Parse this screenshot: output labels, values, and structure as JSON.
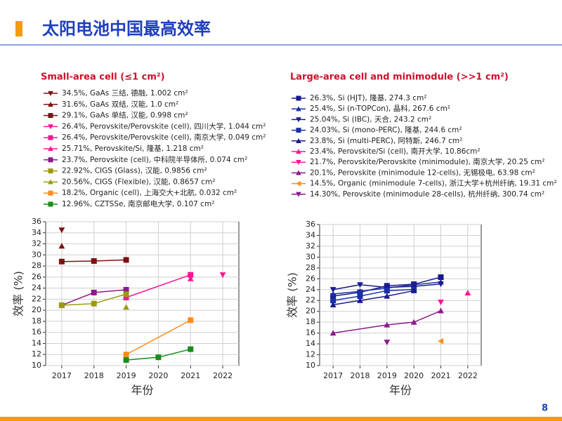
{
  "slide_title": "太阳电池中国最高效率",
  "page_number": "8",
  "chart_data": [
    {
      "type": "line",
      "title": "Small-area cell (≤1 cm²)",
      "xlabel": "年份",
      "ylabel": "效率 (%)",
      "xlim": [
        2016.5,
        2022.5
      ],
      "xticks": [
        2017,
        2018,
        2019,
        2020,
        2021,
        2022
      ],
      "ylim": [
        10,
        36
      ],
      "yticks": [
        10,
        12,
        14,
        16,
        18,
        20,
        22,
        24,
        26,
        28,
        30,
        32,
        34,
        36
      ],
      "grid": true,
      "series": [
        {
          "name": "34.5%, GaAs 三结, 德融, 1.002 cm²",
          "color": "#7f1010",
          "marker": "down",
          "x": [
            2017
          ],
          "values": [
            34.5
          ]
        },
        {
          "name": "31.6%, GaAs 双结, 汉能, 1.0 cm²",
          "color": "#7f1010",
          "marker": "up",
          "x": [
            2017
          ],
          "values": [
            31.6
          ]
        },
        {
          "name": "29.1%, GaAs 单结, 汉能, 0.998 cm²",
          "color": "#7f1010",
          "marker": "square",
          "x": [
            2017,
            2018,
            2019
          ],
          "values": [
            28.8,
            28.9,
            29.1
          ]
        },
        {
          "name": "26.4%, Perovskite/Perovskite (cell), 四川大学, 1.044 cm²",
          "color": "#ff1493",
          "marker": "down",
          "x": [
            2022
          ],
          "values": [
            26.4
          ]
        },
        {
          "name": "26.4%, Perovskite/Perovskite (cell), 南京大学, 0.049 cm²",
          "color": "#ff1493",
          "marker": "square",
          "x": [
            2019,
            2021
          ],
          "values": [
            22.3,
            26.4
          ]
        },
        {
          "name": "25.71%, Perovskite/Si, 隆基, 1.218 cm²",
          "color": "#ff1493",
          "marker": "up",
          "x": [
            2021
          ],
          "values": [
            25.71
          ]
        },
        {
          "name": "23.7%, Perovskite (cell), 中科院半导体所, 0.074 cm²",
          "color": "#8b1a8b",
          "marker": "square",
          "x": [
            2017,
            2018,
            2019
          ],
          "values": [
            20.9,
            23.2,
            23.7
          ]
        },
        {
          "name": "22.92%, CIGS (Glass), 汉能, 0.9856 cm²",
          "color": "#9a9a10",
          "marker": "square",
          "x": [
            2017,
            2018,
            2019
          ],
          "values": [
            20.9,
            21.2,
            22.92
          ]
        },
        {
          "name": "20.56%, CIGS (Flexible), 汉能, 0.8657 cm²",
          "color": "#9a9a10",
          "marker": "up",
          "x": [
            2019
          ],
          "values": [
            20.56
          ]
        },
        {
          "name": "18.2%, Organic (cell), 上海交大+北航, 0.032 cm²",
          "color": "#ff8c1a",
          "marker": "square",
          "x": [
            2019,
            2021
          ],
          "values": [
            12.0,
            18.2
          ]
        },
        {
          "name": "12.96%, CZTSSe, 南京邮电大学, 0.107 cm²",
          "color": "#1a8c1a",
          "marker": "square",
          "x": [
            2019,
            2020,
            2021
          ],
          "values": [
            11.0,
            11.5,
            12.96
          ]
        }
      ]
    },
    {
      "type": "line",
      "title": "Large-area cell and minimodule (>>1 cm²)",
      "xlabel": "年份",
      "ylabel": "效率 (%)",
      "xlim": [
        2016.5,
        2022.5
      ],
      "xticks": [
        2017,
        2018,
        2019,
        2020,
        2021,
        2022
      ],
      "ylim": [
        10,
        36
      ],
      "yticks": [
        10,
        12,
        14,
        16,
        18,
        20,
        22,
        24,
        26,
        28,
        30,
        32,
        34,
        36
      ],
      "grid": true,
      "series": [
        {
          "name": "26.3%, Si (HJT), 隆基, 274.3 cm²",
          "color": "#1a1a8c",
          "marker": "square",
          "x": [
            2017,
            2018,
            2019,
            2020,
            2021
          ],
          "values": [
            22.8,
            23.5,
            24.7,
            25.0,
            26.3
          ]
        },
        {
          "name": "25.4%, Si (n-TOPCon), 晶科, 267.6 cm²",
          "color": "#1a2fa8",
          "marker": "up",
          "x": [
            2017,
            2018,
            2019,
            2020,
            2021
          ],
          "values": [
            23.2,
            23.7,
            24.3,
            24.9,
            25.4
          ]
        },
        {
          "name": "25.04%, Si (IBC), 天合, 243.2 cm²",
          "color": "#1a1a8c",
          "marker": "down",
          "x": [
            2017,
            2018,
            2019,
            2020,
            2021
          ],
          "values": [
            24.0,
            24.9,
            24.4,
            24.6,
            25.04
          ]
        },
        {
          "name": "24.03%, Si (mono-PERC), 隆基, 244.6 cm²",
          "color": "#1a2fa8",
          "marker": "square",
          "x": [
            2017,
            2018,
            2019,
            2020
          ],
          "values": [
            22.0,
            22.8,
            23.8,
            24.03
          ]
        },
        {
          "name": "23.8%, Si (multi-PERC), 阿特斯, 246.7 cm²",
          "color": "#1a1a8c",
          "marker": "up",
          "x": [
            2017,
            2018,
            2019,
            2020
          ],
          "values": [
            21.2,
            22.0,
            22.8,
            23.8
          ]
        },
        {
          "name": "23.4%, Perovskite/Si (cell), 南开大学, 10.86cm²",
          "color": "#ff1493",
          "marker": "up",
          "x": [
            2022
          ],
          "values": [
            23.4
          ]
        },
        {
          "name": "21.7%, Perovskite/Perovskite (minimodule), 南京大学, 20.25 cm²",
          "color": "#ff1493",
          "marker": "down",
          "x": [
            2021
          ],
          "values": [
            21.7
          ]
        },
        {
          "name": "20.1%, Perovskite (minimodule 12-cells), 无锡极电, 63.98 cm²",
          "color": "#8b1a8b",
          "marker": "up",
          "x": [
            2017,
            2019,
            2020,
            2021
          ],
          "values": [
            16.0,
            17.5,
            18.0,
            20.1
          ]
        },
        {
          "name": "14.5%, Organic (minimodule 7-cells), 浙江大学+杭州纤纳, 19.31 cm²",
          "color": "#ff8c1a",
          "marker": "left",
          "x": [
            2021
          ],
          "values": [
            14.5
          ]
        },
        {
          "name": "14.30%, Perovskite (minimodule 28-cells), 杭州纤纳, 300.74 cm²",
          "color": "#8b1a8b",
          "marker": "down",
          "x": [
            2019
          ],
          "values": [
            14.3
          ]
        }
      ]
    }
  ]
}
